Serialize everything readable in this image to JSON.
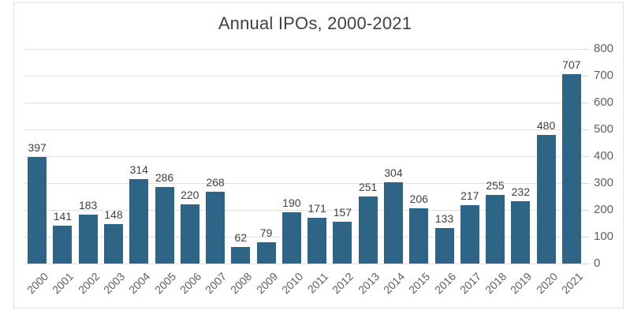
{
  "chart_data": {
    "type": "bar",
    "title": "Annual IPOs, 2000-2021",
    "categories": [
      "2000",
      "2001",
      "2002",
      "2003",
      "2004",
      "2005",
      "2006",
      "2007",
      "2008",
      "2009",
      "2010",
      "2011",
      "2012",
      "2013",
      "2014",
      "2015",
      "2016",
      "2017",
      "2018",
      "2019",
      "2020",
      "2021"
    ],
    "values": [
      397,
      141,
      183,
      148,
      314,
      286,
      220,
      268,
      62,
      79,
      190,
      171,
      157,
      251,
      304,
      206,
      133,
      217,
      255,
      232,
      480,
      707
    ],
    "xlabel": "",
    "ylabel": "",
    "ylim": [
      0,
      800
    ],
    "yticks": [
      0,
      100,
      200,
      300,
      400,
      500,
      600,
      700,
      800
    ],
    "y_axis_position": "right",
    "grid": true,
    "legend": false,
    "value_labels_shown": true,
    "colors": {
      "bar": "#2e6486",
      "title_text": "#424242",
      "value_label_text": "#404040",
      "axis_label_text": "#5f5f5f",
      "gridline": "#e2e2e2",
      "card_border": "#e1e1e1",
      "background": "#ffffff"
    }
  }
}
